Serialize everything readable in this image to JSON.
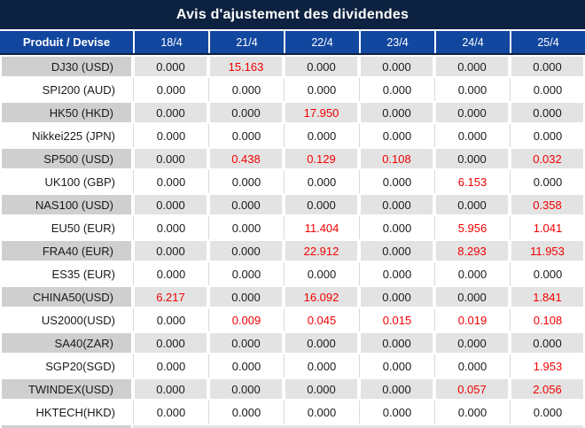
{
  "title": "Avis d'ajustement des dividendes",
  "colors": {
    "title_bg": "#0d2240",
    "header_bg": "#1247a0",
    "header_border": "#0d2240",
    "row_gray_product": "#cfcfcf",
    "row_gray_value": "#e3e3e3",
    "grid_line": "#d9d9d9",
    "text_dark": "#1a1a1a",
    "value_red": "#f30000"
  },
  "chart_data": {
    "type": "table",
    "title": "Avis d'ajustement des dividendes",
    "product_header": "Produit / Devise",
    "columns": [
      "18/4",
      "21/4",
      "22/4",
      "23/4",
      "24/4",
      "25/4"
    ],
    "red_means": "non-zero dividend adjustment highlighted in red",
    "rows": [
      {
        "product": "DJ30 (USD)",
        "values": [
          "0.000",
          "15.163",
          "0.000",
          "0.000",
          "0.000",
          "0.000"
        ],
        "red_columns": [
          1
        ]
      },
      {
        "product": "SPI200 (AUD)",
        "values": [
          "0.000",
          "0.000",
          "0.000",
          "0.000",
          "0.000",
          "0.000"
        ],
        "red_columns": []
      },
      {
        "product": "HK50 (HKD)",
        "values": [
          "0.000",
          "0.000",
          "17.950",
          "0.000",
          "0.000",
          "0.000"
        ],
        "red_columns": [
          2
        ]
      },
      {
        "product": "Nikkei225 (JPN)",
        "values": [
          "0.000",
          "0.000",
          "0.000",
          "0.000",
          "0.000",
          "0.000"
        ],
        "red_columns": []
      },
      {
        "product": "SP500 (USD)",
        "values": [
          "0.000",
          "0.438",
          "0.129",
          "0.108",
          "0.000",
          "0.032"
        ],
        "red_columns": [
          1,
          2,
          3,
          5
        ]
      },
      {
        "product": "UK100 (GBP)",
        "values": [
          "0.000",
          "0.000",
          "0.000",
          "0.000",
          "6.153",
          "0.000"
        ],
        "red_columns": [
          4
        ]
      },
      {
        "product": "NAS100 (USD)",
        "values": [
          "0.000",
          "0.000",
          "0.000",
          "0.000",
          "0.000",
          "0.358"
        ],
        "red_columns": [
          5
        ]
      },
      {
        "product": "EU50 (EUR)",
        "values": [
          "0.000",
          "0.000",
          "11.404",
          "0.000",
          "5.956",
          "1.041"
        ],
        "red_columns": [
          2,
          4,
          5
        ]
      },
      {
        "product": "FRA40 (EUR)",
        "values": [
          "0.000",
          "0.000",
          "22.912",
          "0.000",
          "8.293",
          "11.953"
        ],
        "red_columns": [
          2,
          4,
          5
        ]
      },
      {
        "product": "ES35 (EUR)",
        "values": [
          "0.000",
          "0.000",
          "0.000",
          "0.000",
          "0.000",
          "0.000"
        ],
        "red_columns": []
      },
      {
        "product": "CHINA50(USD)",
        "values": [
          "6.217",
          "0.000",
          "16.092",
          "0.000",
          "0.000",
          "1.841"
        ],
        "red_columns": [
          0,
          2,
          5
        ]
      },
      {
        "product": "US2000(USD)",
        "values": [
          "0.000",
          "0.009",
          "0.045",
          "0.015",
          "0.019",
          "0.108"
        ],
        "red_columns": [
          1,
          2,
          3,
          4,
          5
        ]
      },
      {
        "product": "SA40(ZAR)",
        "values": [
          "0.000",
          "0.000",
          "0.000",
          "0.000",
          "0.000",
          "0.000"
        ],
        "red_columns": []
      },
      {
        "product": "SGP20(SGD)",
        "values": [
          "0.000",
          "0.000",
          "0.000",
          "0.000",
          "0.000",
          "1.953"
        ],
        "red_columns": [
          5
        ]
      },
      {
        "product": "TWINDEX(USD)",
        "values": [
          "0.000",
          "0.000",
          "0.000",
          "0.000",
          "0.057",
          "2.056"
        ],
        "red_columns": [
          4,
          5
        ]
      },
      {
        "product": "HKTECH(HKD)",
        "values": [
          "0.000",
          "0.000",
          "0.000",
          "0.000",
          "0.000",
          "0.000"
        ],
        "red_columns": []
      }
    ]
  }
}
